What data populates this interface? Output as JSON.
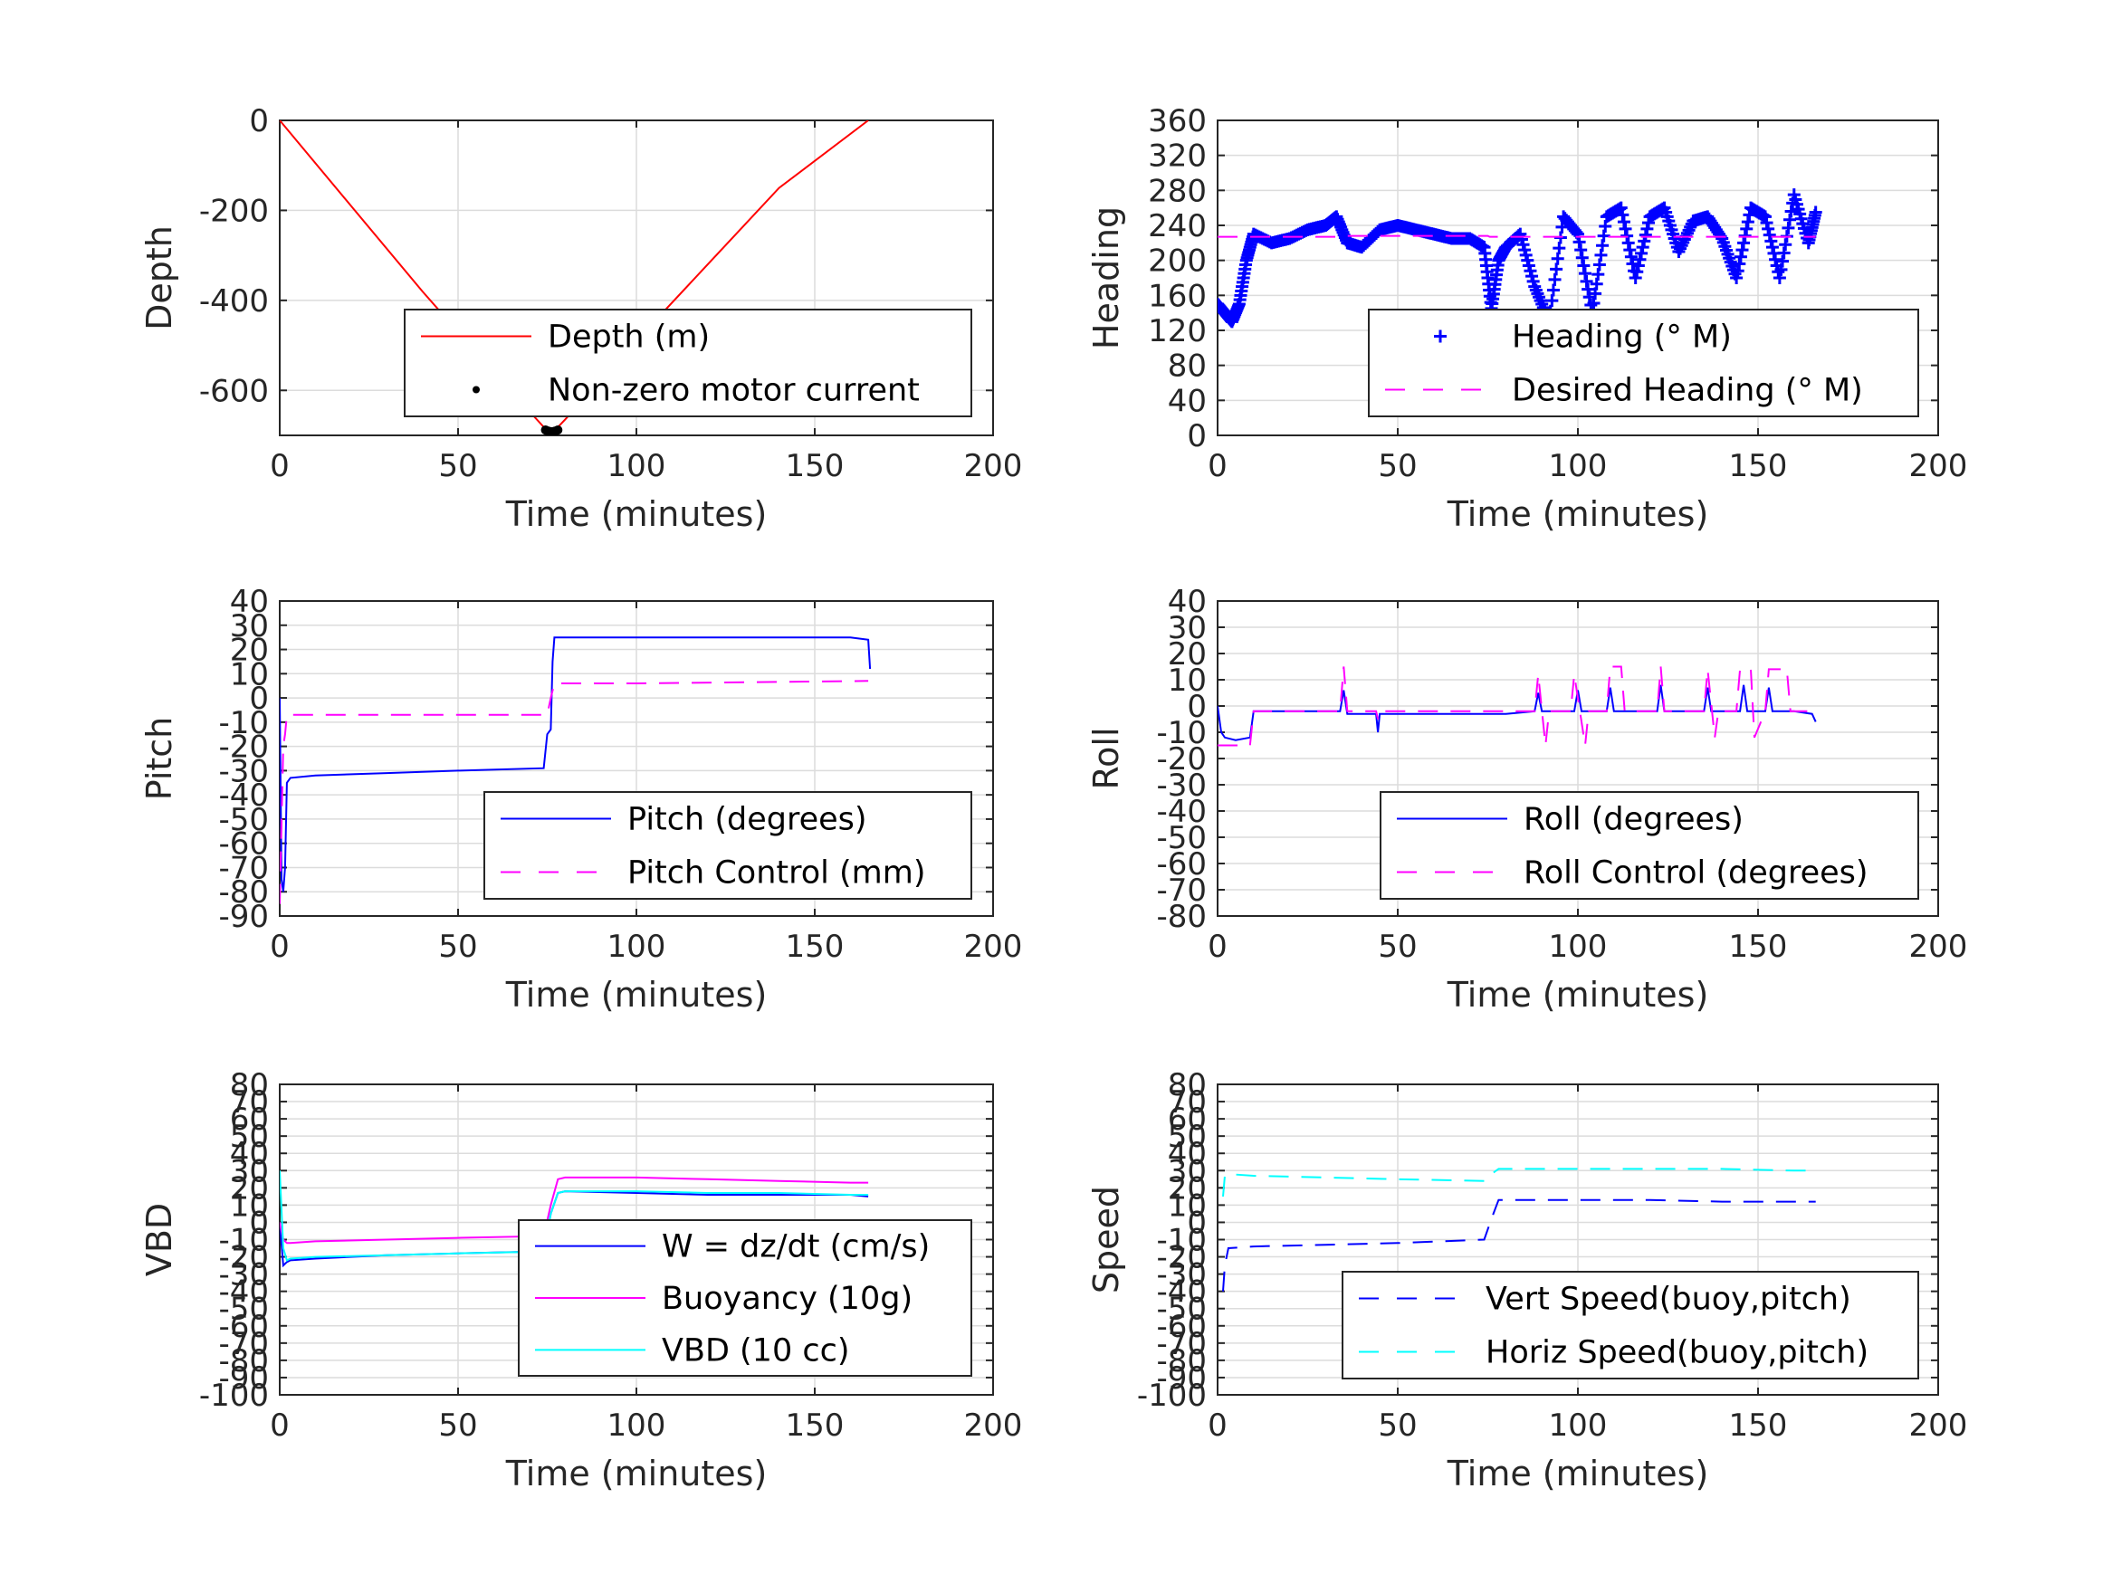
{
  "chart_data": [
    {
      "type": "line",
      "xlabel": "Time (minutes)",
      "ylabel": "Depth",
      "xlim": [
        0,
        200
      ],
      "ylim": [
        -700,
        0
      ],
      "xticks": [
        0,
        50,
        100,
        150,
        200
      ],
      "yticks": [
        0,
        -200,
        -400,
        -600
      ],
      "grid": true,
      "legend_position": "bottom-right",
      "series": [
        {
          "name": "Depth (m)",
          "style": "solid",
          "color": "#ff0000",
          "x": [
            0,
            20,
            40,
            60,
            75,
            77,
            80,
            100,
            120,
            140,
            165
          ],
          "y": [
            0,
            -190,
            -380,
            -560,
            -690,
            -690,
            -665,
            -490,
            -320,
            -150,
            0
          ]
        },
        {
          "name": "Non-zero motor current",
          "style": "dot",
          "color": "#000000",
          "x": [
            74.5,
            75,
            75.5,
            76,
            76.5,
            77,
            77.5,
            78
          ],
          "y": [
            -688,
            -690,
            -691,
            -692,
            -692,
            -691,
            -690,
            -688
          ]
        }
      ]
    },
    {
      "type": "line",
      "xlabel": "Time (minutes)",
      "ylabel": "Heading",
      "xlim": [
        0,
        200
      ],
      "ylim": [
        0,
        360
      ],
      "xticks": [
        0,
        50,
        100,
        150,
        200
      ],
      "yticks": [
        0,
        40,
        80,
        120,
        160,
        200,
        240,
        280,
        320,
        360
      ],
      "grid": true,
      "legend_position": "bottom-right",
      "series": [
        {
          "name": "Heading (° M)",
          "style": "plus",
          "color": "#0000ff",
          "x": [
            0,
            2,
            4,
            6,
            8,
            10,
            15,
            20,
            25,
            30,
            33,
            36,
            40,
            45,
            50,
            55,
            60,
            65,
            70,
            74,
            76,
            78,
            80,
            84,
            88,
            92,
            96,
            100,
            104,
            108,
            112,
            116,
            120,
            124,
            128,
            132,
            136,
            140,
            144,
            148,
            152,
            156,
            160,
            164,
            166
          ],
          "y": [
            150,
            140,
            130,
            150,
            200,
            230,
            220,
            225,
            235,
            240,
            250,
            220,
            215,
            235,
            240,
            235,
            230,
            225,
            225,
            215,
            145,
            200,
            215,
            230,
            170,
            130,
            250,
            230,
            140,
            250,
            260,
            180,
            250,
            260,
            210,
            245,
            250,
            225,
            180,
            260,
            250,
            180,
            275,
            220,
            255
          ]
        },
        {
          "name": "Desired Heading (° M)",
          "style": "dash",
          "color": "#ff00ff",
          "x": [
            0,
            35,
            35.5,
            75,
            75.5,
            166
          ],
          "y": [
            227,
            227,
            228,
            228,
            227,
            227
          ]
        }
      ]
    },
    {
      "type": "line",
      "xlabel": "Time (minutes)",
      "ylabel": "Pitch",
      "xlim": [
        0,
        200
      ],
      "ylim": [
        -90,
        40
      ],
      "xticks": [
        0,
        50,
        100,
        150,
        200
      ],
      "yticks": [
        40,
        30,
        20,
        10,
        0,
        -10,
        -20,
        -30,
        -40,
        -50,
        -60,
        -70,
        -80,
        -90
      ],
      "grid": true,
      "legend_position": "bottom-right",
      "series": [
        {
          "name": "Pitch (degrees)",
          "style": "solid",
          "color": "#0000ff",
          "x": [
            0,
            0.5,
            1,
            1.5,
            2,
            3,
            10,
            30,
            50,
            74,
            75,
            76,
            76.5,
            77,
            80,
            100,
            120,
            140,
            160,
            165,
            165.5
          ],
          "y": [
            0,
            -75,
            -80,
            -70,
            -35,
            -33,
            -32,
            -31,
            -30,
            -29,
            -15,
            -13,
            15,
            25,
            25,
            25,
            25,
            25,
            25,
            24,
            12
          ]
        },
        {
          "name": "Pitch Control (mm)",
          "style": "dash",
          "color": "#ff00ff",
          "x": [
            0,
            1,
            1.5,
            2,
            75,
            76,
            77,
            100,
            165
          ],
          "y": [
            -85,
            -20,
            -15,
            -7,
            -7,
            0,
            6,
            6,
            7
          ]
        }
      ]
    },
    {
      "type": "line",
      "xlabel": "Time (minutes)",
      "ylabel": "Roll",
      "xlim": [
        0,
        200
      ],
      "ylim": [
        -80,
        40
      ],
      "xticks": [
        0,
        50,
        100,
        150,
        200
      ],
      "yticks": [
        40,
        30,
        20,
        10,
        0,
        -10,
        -20,
        -30,
        -40,
        -50,
        -60,
        -70,
        -80
      ],
      "grid": true,
      "legend_position": "bottom-right",
      "series": [
        {
          "name": "Roll (degrees)",
          "style": "solid",
          "color": "#0000ff",
          "x": [
            0,
            1,
            2,
            5,
            9,
            10,
            34,
            35,
            36,
            44,
            44.5,
            45,
            80,
            88,
            89,
            90,
            99,
            100,
            101,
            108,
            109,
            110,
            122,
            123,
            124,
            135,
            136,
            137,
            145,
            146,
            147,
            152,
            153,
            154,
            160,
            165,
            166
          ],
          "y": [
            0,
            -10,
            -12,
            -13,
            -12,
            -2,
            -2,
            6,
            -3,
            -3,
            -10,
            -3,
            -3,
            -2,
            5,
            -2,
            -2,
            6,
            -2,
            -2,
            7,
            -2,
            -2,
            8,
            -2,
            -2,
            7,
            -2,
            -2,
            8,
            -2,
            -2,
            7,
            -2,
            -2,
            -3,
            -6
          ]
        },
        {
          "name": "Roll Control (degrees)",
          "style": "dash",
          "color": "#ff00ff",
          "x": [
            0,
            9,
            10,
            34,
            35,
            36,
            44,
            44.5,
            45,
            88,
            89,
            91,
            92,
            98,
            99,
            102,
            103,
            108,
            109,
            112,
            113,
            122,
            123,
            124,
            135,
            136,
            138,
            139,
            144,
            145,
            148,
            149,
            152,
            153,
            158,
            159,
            165
          ],
          "y": [
            -15,
            -15,
            -2,
            -2,
            15,
            -2,
            -2,
            -5,
            -2,
            -2,
            12,
            -15,
            -2,
            -2,
            12,
            -15,
            -2,
            -2,
            15,
            15,
            -2,
            -2,
            15,
            -2,
            -2,
            14,
            -12,
            -2,
            -2,
            14,
            14,
            -12,
            -2,
            14,
            14,
            -2,
            -2
          ]
        }
      ]
    },
    {
      "type": "line",
      "xlabel": "Time (minutes)",
      "ylabel": "VBD",
      "xlim": [
        0,
        200
      ],
      "ylim": [
        -100,
        80
      ],
      "xticks": [
        0,
        50,
        100,
        150,
        200
      ],
      "yticks": [
        80,
        70,
        60,
        50,
        40,
        30,
        20,
        10,
        0,
        -10,
        -20,
        -30,
        -40,
        -50,
        -60,
        -70,
        -80,
        -90,
        -100
      ],
      "grid": true,
      "legend_position": "bottom-right",
      "series": [
        {
          "name": "W = dz/dt (cm/s)",
          "style": "solid",
          "color": "#0000ff",
          "x": [
            0,
            1,
            2,
            3,
            10,
            30,
            50,
            72,
            74,
            76,
            78,
            80,
            100,
            120,
            140,
            160,
            165
          ],
          "y": [
            0,
            -25,
            -23,
            -22,
            -21,
            -19,
            -18,
            -17,
            -17,
            5,
            17,
            18,
            17,
            16,
            16,
            16,
            15
          ]
        },
        {
          "name": "Buoyancy (10g)",
          "style": "solid",
          "color": "#ff00ff",
          "x": [
            0,
            1,
            2,
            3,
            10,
            30,
            50,
            74,
            76,
            78,
            80,
            100,
            120,
            140,
            160,
            165
          ],
          "y": [
            0,
            -10,
            -12,
            -12,
            -11,
            -10,
            -9,
            -8,
            10,
            25,
            26,
            26,
            25,
            24,
            23,
            23
          ]
        },
        {
          "name": "VBD (10 cc)",
          "style": "solid",
          "color": "#00ffff",
          "x": [
            0,
            1,
            2,
            3,
            10,
            30,
            50,
            74,
            76,
            78,
            80,
            100,
            120,
            140,
            160,
            165
          ],
          "y": [
            30,
            -15,
            -22,
            -21,
            -20,
            -19,
            -18,
            -17,
            5,
            17,
            18,
            18,
            17,
            17,
            16,
            16
          ]
        }
      ]
    },
    {
      "type": "line",
      "xlabel": "Time (minutes)",
      "ylabel": "Speed",
      "xlim": [
        0,
        200
      ],
      "ylim": [
        -100,
        80
      ],
      "xticks": [
        0,
        50,
        100,
        150,
        200
      ],
      "yticks": [
        80,
        70,
        60,
        50,
        40,
        30,
        20,
        10,
        0,
        -10,
        -20,
        -30,
        -40,
        -50,
        -60,
        -70,
        -80,
        -90,
        -100
      ],
      "grid": true,
      "legend_position": "bottom-right",
      "series": [
        {
          "name": "Vert Speed(buoy,pitch)",
          "style": "dash",
          "color": "#0000ff",
          "x": [
            1.5,
            2,
            3,
            10,
            30,
            50,
            74,
            76,
            78,
            80,
            100,
            120,
            140,
            160,
            166
          ],
          "y": [
            -40,
            -25,
            -15,
            -14,
            -13,
            -12,
            -10,
            2,
            13,
            13,
            13,
            13,
            12,
            12,
            12
          ]
        },
        {
          "name": "Horiz Speed(buoy,pitch)",
          "style": "dash",
          "color": "#00ffff",
          "x": [
            1.5,
            2,
            3,
            10,
            30,
            50,
            74,
            76,
            78,
            80,
            100,
            120,
            140,
            160,
            166
          ],
          "y": [
            15,
            27,
            28,
            27,
            26,
            25,
            24,
            28,
            31,
            31,
            31,
            31,
            31,
            30,
            30
          ]
        }
      ]
    }
  ]
}
